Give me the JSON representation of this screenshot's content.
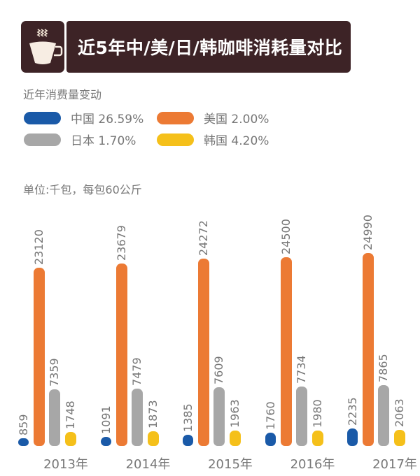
{
  "header": {
    "title": "近5年中/美/日/韩咖啡消耗量对比",
    "icon": "coffee-cup-icon",
    "bg_color": "#3d2326"
  },
  "legend": {
    "title": "近年消费量变动",
    "items": [
      {
        "label": "中国 26.59%",
        "color": "#1a5aa8"
      },
      {
        "label": "美国 2.00%",
        "color": "#ec7a34"
      },
      {
        "label": "日本 1.70%",
        "color": "#a7a7a7"
      },
      {
        "label": "韩国 4.20%",
        "color": "#f5c01a"
      }
    ]
  },
  "unit": "单位:千包，每包60公斤",
  "chart_data": {
    "type": "bar",
    "title": "近5年中/美/日/韩咖啡消耗量对比",
    "subtitle": "近年消费量变动",
    "ylabel": "单位:千包，每包60公斤",
    "xlabel": "",
    "categories": [
      "2013年",
      "2014年",
      "2015年",
      "2016年",
      "2017年"
    ],
    "series": [
      {
        "name": "中国",
        "change": "26.59%",
        "color": "#1a5aa8",
        "values": [
          859,
          1091,
          1385,
          1760,
          2235
        ]
      },
      {
        "name": "美国",
        "change": "2.00%",
        "color": "#ec7a34",
        "values": [
          23120,
          23679,
          24272,
          24500,
          24990
        ]
      },
      {
        "name": "日本",
        "change": "1.70%",
        "color": "#a7a7a7",
        "values": [
          7359,
          7479,
          7609,
          7734,
          7865
        ]
      },
      {
        "name": "韩国",
        "change": "4.20%",
        "color": "#f5c01a",
        "values": [
          1748,
          1873,
          1963,
          1980,
          2063
        ]
      }
    ],
    "grid": false,
    "legend_position": "top-left",
    "data_labels": "rotated-vertical"
  }
}
